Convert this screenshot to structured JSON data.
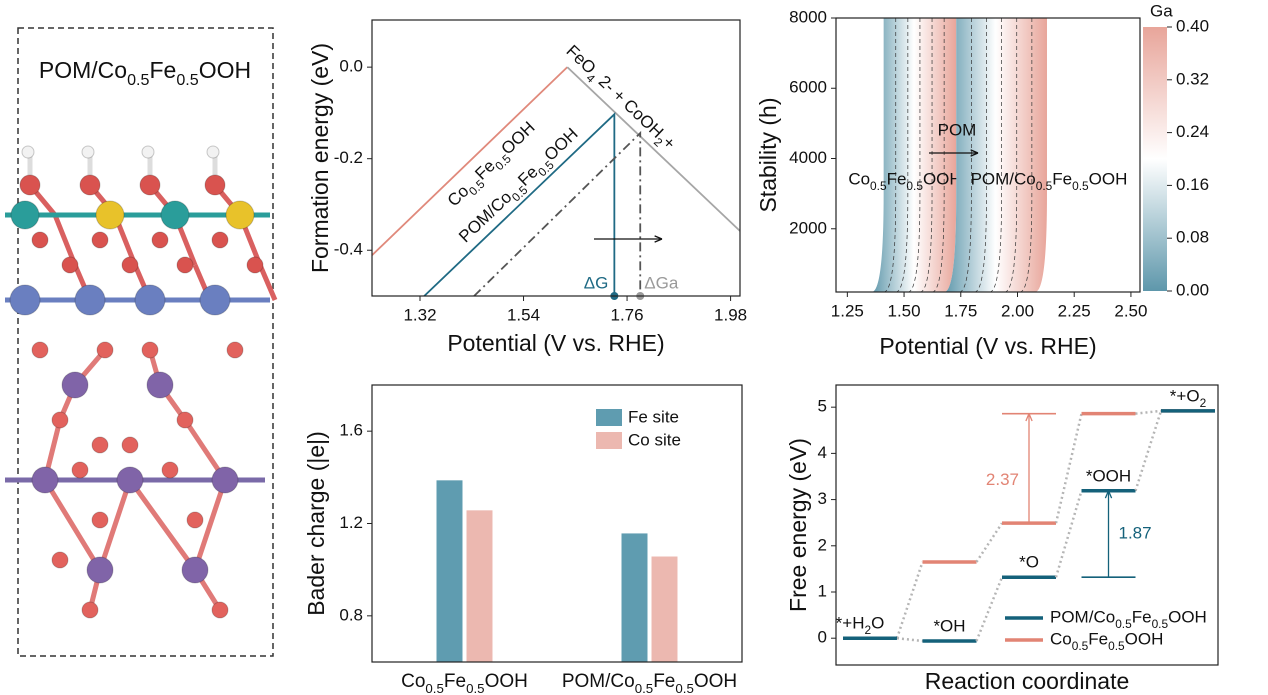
{
  "structure": {
    "label": "POM/Co0.5Fe0.5OOH"
  },
  "chart_data": [
    {
      "type": "line",
      "xlabel": "Potential (V vs. RHE)",
      "ylabel": "Formation energy (eV)",
      "xlim": [
        1.218,
        2.0
      ],
      "ylim": [
        -0.5,
        0.103
      ],
      "xticks": [
        1.32,
        1.54,
        1.76,
        1.98
      ],
      "yticks": [
        {
          "value": 0,
          "label": "0.0"
        },
        -0.2,
        -0.4
      ],
      "series": [
        {
          "name": "Co0.5Fe0.5OOH",
          "color": "#e0897b",
          "x": [
            1.218,
            1.633
          ],
          "values": [
            -0.411,
            0
          ]
        },
        {
          "name": "FeO4 2- + CoOH2+",
          "color": "#a6a6a6",
          "x": [
            1.633,
            2.0
          ],
          "values": [
            0,
            -0.358
          ]
        },
        {
          "name": "POM/Co0.5Fe0.5OOH",
          "color": "#1f6a84",
          "x": [
            1.329,
            1.733,
            1.733
          ],
          "values": [
            -0.5,
            -0.103,
            -0.5
          ]
        },
        {
          "color": "#555555",
          "dash": "dashdot",
          "x": [
            1.435,
            1.788,
            1.788
          ],
          "values": [
            -0.5,
            -0.144,
            -0.5
          ]
        }
      ],
      "points": [
        {
          "label": "ΔG",
          "x": 1.733,
          "y": -0.5,
          "color": "#1f6a84"
        },
        {
          "label": "ΔGa",
          "x": 1.788,
          "y": -0.5,
          "color": "#9a9a9a"
        }
      ]
    },
    {
      "type": "heatmap",
      "xlabel": "Potential (V vs. RHE)",
      "ylabel": "Stability (h)",
      "xlim": [
        1.2,
        2.54
      ],
      "ylim": [
        200,
        8000
      ],
      "xticks": [
        {
          "value": 1.25,
          "label": "1.25"
        },
        {
          "value": 1.5,
          "label": "1.50"
        },
        1.75,
        {
          "value": 2,
          "label": "2.00"
        },
        2.25,
        {
          "value": 2.5,
          "label": "2.50"
        }
      ],
      "yticks": [
        2000,
        4000,
        6000,
        8000
      ],
      "colorbar": {
        "title": "Ga",
        "lim": [
          0,
          0.4
        ],
        "ticks": [
          {
            "value": 0,
            "label": "0.00"
          },
          0.08,
          0.16,
          0.24,
          0.32,
          {
            "value": 0.4,
            "label": "0.40"
          }
        ],
        "colors": [
          "#5e97ab",
          "#ffffff",
          "#e8a59a"
        ]
      },
      "regions": [
        {
          "label": "Co0.5Fe0.5OOH",
          "x": [
            1.41,
            1.73
          ]
        },
        {
          "label": "POM/Co0.5Fe0.5OOH",
          "x": [
            1.73,
            2.13
          ]
        }
      ],
      "annotation": "POM"
    },
    {
      "type": "bar",
      "ylabel": "Bader charge (|e|)",
      "categories": [
        "Co0.5Fe0.5OOH",
        "POM/Co0.5Fe0.5OOH"
      ],
      "ylim": [
        0.6,
        1.8
      ],
      "yticks": [
        0.8,
        1.2,
        1.6
      ],
      "series": [
        {
          "name": "Fe site",
          "color": "#5f9cb0",
          "values": [
            1.387,
            1.157
          ]
        },
        {
          "name": "Co site",
          "color": "#ecb8b0",
          "values": [
            1.257,
            1.057
          ]
        }
      ]
    },
    {
      "type": "step",
      "xlabel": "Reaction coordinate",
      "ylabel": "Free energy (eV)",
      "ylim": [
        -0.58,
        5.48
      ],
      "yticks": [
        0,
        1,
        2,
        3,
        4,
        5
      ],
      "categories": [
        "*+H2O",
        "*OH",
        "*O",
        "*OOH",
        "*+O2"
      ],
      "series": [
        {
          "name": "POM/Co0.5Fe0.5OOH",
          "color": "#14617a",
          "values": [
            0,
            -0.06,
            1.32,
            3.19,
            4.92
          ]
        },
        {
          "name": "Co0.5Fe0.5OOH",
          "color": "#e28474",
          "values": [
            0,
            1.65,
            2.49,
            4.86,
            4.92
          ]
        }
      ],
      "annotations": [
        {
          "text": "2.37",
          "color": "#e28474",
          "step": 2,
          "from": 2.49,
          "to": 4.86
        },
        {
          "text": "1.87",
          "color": "#14617a",
          "step": 3,
          "from": 1.32,
          "to": 3.19
        }
      ]
    }
  ]
}
